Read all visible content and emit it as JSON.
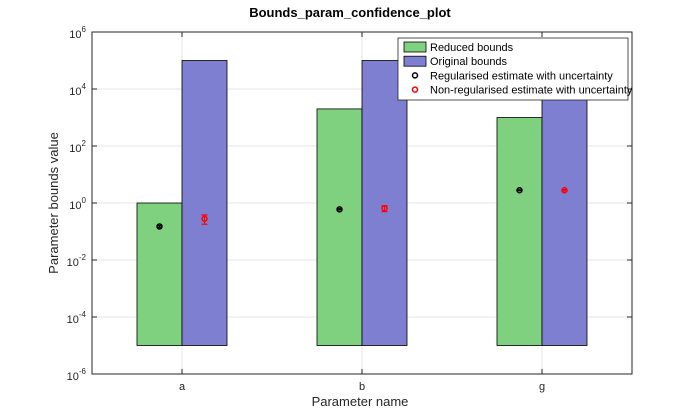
{
  "chart_data": {
    "type": "bar",
    "title": "Bounds_param_confidence_plot",
    "xlabel": "Parameter name",
    "ylabel": "Parameter bounds value",
    "categories": [
      "a",
      "b",
      "g"
    ],
    "yscale": "log",
    "ylim": [
      1e-06,
      1000000.0
    ],
    "yticks": [
      {
        "base": "10",
        "exp": "-6",
        "value": 1e-06
      },
      {
        "base": "10",
        "exp": "-4",
        "value": 0.0001
      },
      {
        "base": "10",
        "exp": "-2",
        "value": 0.01
      },
      {
        "base": "10",
        "exp": "0",
        "value": 1
      },
      {
        "base": "10",
        "exp": "2",
        "value": 100.0
      },
      {
        "base": "10",
        "exp": "4",
        "value": 10000.0
      },
      {
        "base": "10",
        "exp": "6",
        "value": 1000000.0
      }
    ],
    "grid": true,
    "legend_position": "top-right",
    "series": [
      {
        "name": "Reduced bounds",
        "color": "#7fd17f",
        "lower": [
          1e-05,
          1e-05,
          1e-05
        ],
        "upper": [
          1,
          2000,
          1000
        ]
      },
      {
        "name": "Original bounds",
        "color": "#7f7fd1",
        "lower": [
          1e-05,
          1e-05,
          1e-05
        ],
        "upper": [
          100000,
          100000,
          100000
        ]
      }
    ],
    "estimates": [
      {
        "name": "Regularised estimate with uncertainty",
        "color": "#000000",
        "values": [
          0.15,
          0.6,
          2.8
        ],
        "low": [
          0.14,
          0.57,
          2.7
        ],
        "high": [
          0.16,
          0.63,
          2.9
        ]
      },
      {
        "name": "Non-regularised estimate with uncertainty",
        "color": "#ff0000",
        "values": [
          0.28,
          0.65,
          2.8
        ],
        "low": [
          0.18,
          0.5,
          2.65
        ],
        "high": [
          0.38,
          0.8,
          2.95
        ]
      }
    ]
  }
}
